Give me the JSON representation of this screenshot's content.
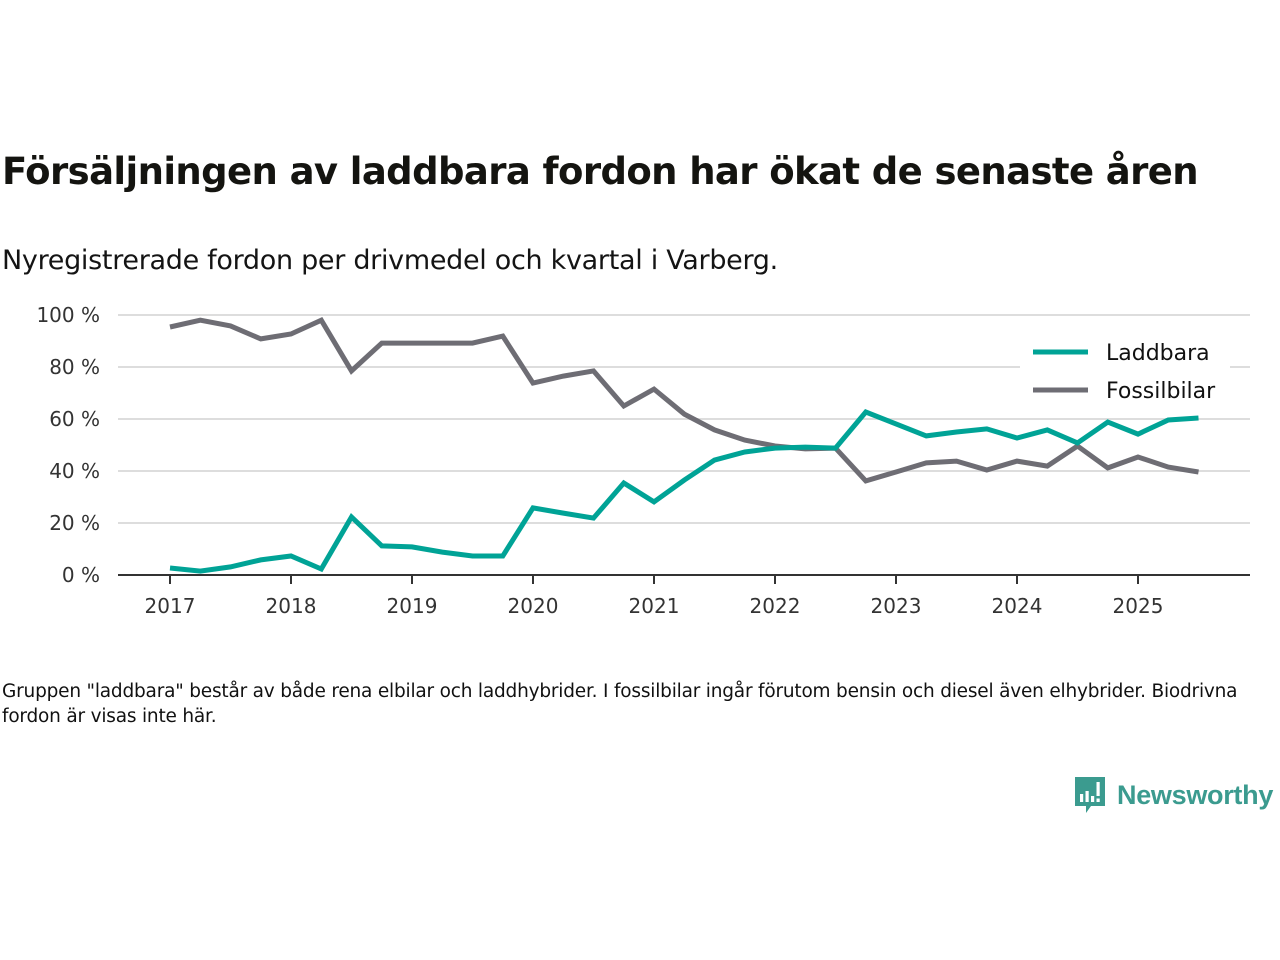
{
  "header": {
    "title": "Försäljningen av laddbara fordon har ökat de senaste åren",
    "subtitle": "Nyregistrerade fordon per drivmedel och kvartal i Varberg."
  },
  "footnote": "Gruppen \"laddbara\" består av både rena elbilar och laddhybrider. I fossilbilar ingår förutom bensin och diesel även elhybrider. Biodrivna fordon är visas inte här.",
  "brand": {
    "name": "Newsworthy",
    "icon": "newsworthy-logo-icon",
    "color": "#3b9b8f"
  },
  "chart_data": {
    "type": "line",
    "title": "Försäljningen av laddbara fordon har ökat de senaste åren",
    "subtitle": "Nyregistrerade fordon per drivmedel och kvartal i Varberg.",
    "xlabel": "",
    "ylabel": "",
    "x": [
      "2017-Q1",
      "2017-Q2",
      "2017-Q3",
      "2017-Q4",
      "2018-Q1",
      "2018-Q2",
      "2018-Q3",
      "2018-Q4",
      "2019-Q1",
      "2019-Q2",
      "2019-Q3",
      "2019-Q4",
      "2020-Q1",
      "2020-Q2",
      "2020-Q3",
      "2020-Q4",
      "2021-Q1",
      "2021-Q2",
      "2021-Q3",
      "2021-Q4",
      "2022-Q1",
      "2022-Q2",
      "2022-Q3",
      "2022-Q4",
      "2023-Q1",
      "2023-Q2",
      "2023-Q3",
      "2023-Q4",
      "2024-Q1",
      "2024-Q2",
      "2024-Q3",
      "2024-Q4",
      "2025-Q1",
      "2025-Q2",
      "2025-Q3"
    ],
    "x_ticks": [
      "2017",
      "2018",
      "2019",
      "2020",
      "2021",
      "2022",
      "2023",
      "2024",
      "2025"
    ],
    "y_ticks": [
      "0 %",
      "20 %",
      "40 %",
      "60 %",
      "80 %",
      "100 %"
    ],
    "y_tick_values": [
      0,
      20,
      40,
      60,
      80,
      100
    ],
    "ylim": [
      0,
      100
    ],
    "x_range": [
      "2016-Q3",
      "2025-Q4"
    ],
    "grid": "horizontal",
    "legend_position": "top-right",
    "series": [
      {
        "name": "Laddbara",
        "color": "#00a396",
        "values": [
          2.7,
          1.5,
          3.1,
          5.8,
          7.3,
          2.3,
          22.3,
          11.2,
          10.8,
          8.8,
          7.3,
          7.3,
          25.8,
          23.8,
          21.9,
          35.4,
          28.1,
          36.5,
          44.2,
          47.3,
          48.8,
          49.2,
          48.8,
          62.7,
          58.1,
          53.5,
          55.0,
          56.2,
          52.7,
          55.8,
          50.8,
          58.8,
          54.2,
          59.6,
          60.4
        ]
      },
      {
        "name": "Fossilbilar",
        "color": "#6e6d74",
        "values": [
          95.4,
          98.0,
          95.8,
          90.8,
          92.7,
          98.0,
          78.5,
          89.2,
          89.2,
          89.2,
          89.2,
          91.9,
          73.8,
          76.5,
          78.5,
          65.0,
          71.5,
          61.9,
          55.8,
          51.9,
          49.6,
          48.5,
          48.8,
          36.2,
          39.6,
          43.1,
          43.8,
          40.4,
          43.8,
          41.9,
          49.6,
          41.2,
          45.4,
          41.5,
          39.6
        ]
      }
    ]
  }
}
